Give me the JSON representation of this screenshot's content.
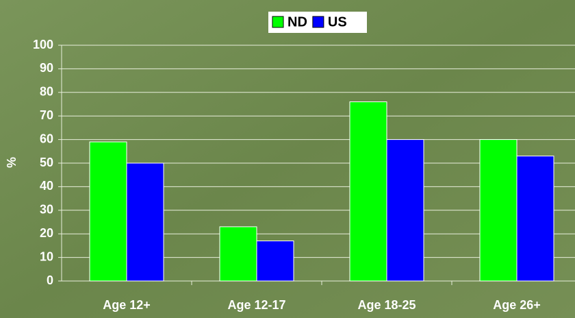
{
  "chart_data": {
    "type": "bar",
    "categories": [
      "Age 12+",
      "Age 12-17",
      "Age 18-25",
      "Age 26+"
    ],
    "series": [
      {
        "name": "ND",
        "color": "#00ff00",
        "values": [
          59,
          23,
          76,
          60
        ]
      },
      {
        "name": "US",
        "color": "#0000ff",
        "values": [
          50,
          17,
          60,
          53
        ]
      }
    ],
    "y_label": "%",
    "ylim": [
      0,
      100
    ],
    "yticks": [
      0,
      10,
      20,
      30,
      40,
      50,
      60,
      70,
      80,
      90,
      100
    ],
    "grid": true
  }
}
